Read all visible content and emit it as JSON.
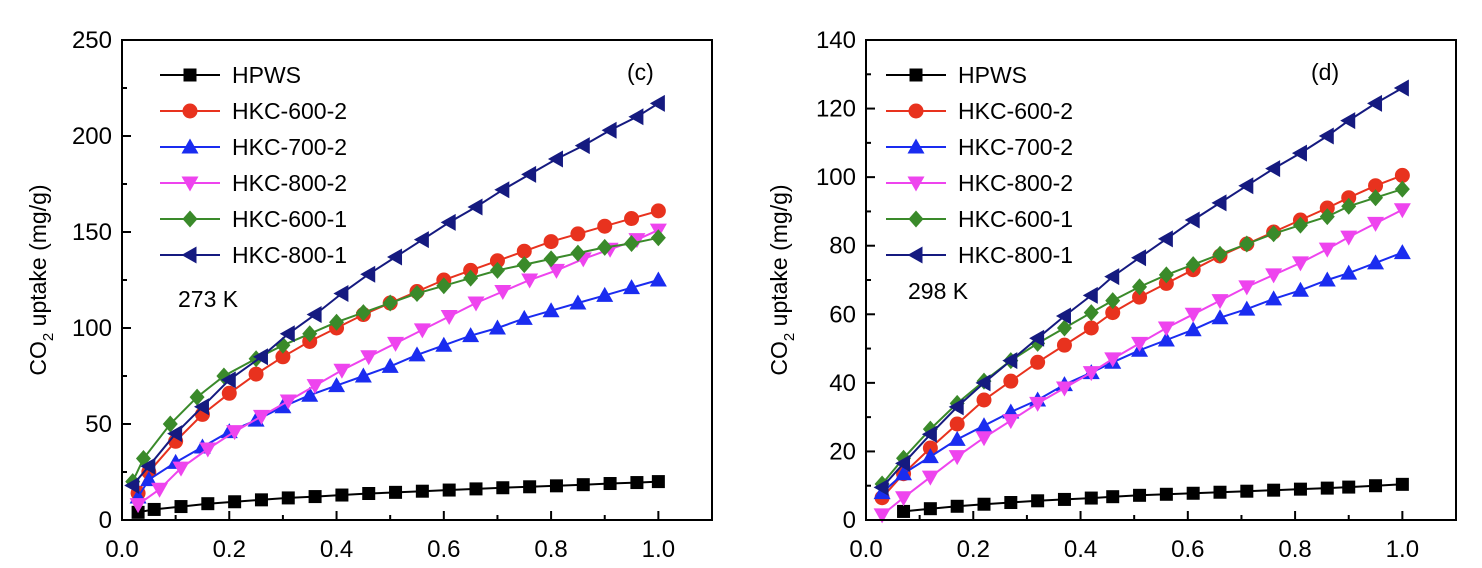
{
  "chart_data": [
    {
      "type": "line",
      "panel_label": "(c)",
      "annotation": "273 K",
      "ylabel": "CO2 uptake (mg/g)",
      "ylabel_main": "CO",
      "ylabel_sub": "2",
      "ylabel_rest": " uptake (mg/g)",
      "xlabel": "",
      "xlim": [
        0.0,
        1.1
      ],
      "ylim": [
        0,
        250
      ],
      "xticks": [
        "0.0",
        "0.2",
        "0.4",
        "0.6",
        "0.8",
        "1.0"
      ],
      "yticks": [
        "0",
        "50",
        "100",
        "150",
        "200",
        "250"
      ],
      "legend_position": "top-left",
      "series": [
        {
          "name": "HPWS",
          "color": "#000000",
          "marker": "square",
          "x": [
            0.03,
            0.06,
            0.11,
            0.16,
            0.21,
            0.26,
            0.31,
            0.36,
            0.41,
            0.46,
            0.51,
            0.56,
            0.61,
            0.66,
            0.71,
            0.76,
            0.81,
            0.86,
            0.91,
            0.96,
            1.0
          ],
          "y": [
            4,
            5.5,
            7,
            8.5,
            9.5,
            10.5,
            11.5,
            12.2,
            13,
            13.8,
            14.4,
            15,
            15.6,
            16.2,
            16.8,
            17.3,
            17.8,
            18.4,
            19,
            19.5,
            20
          ]
        },
        {
          "name": "HKC-600-2",
          "color": "#e8321e",
          "marker": "circle",
          "x": [
            0.03,
            0.05,
            0.1,
            0.15,
            0.2,
            0.25,
            0.3,
            0.35,
            0.4,
            0.45,
            0.5,
            0.55,
            0.6,
            0.65,
            0.7,
            0.75,
            0.8,
            0.85,
            0.9,
            0.95,
            1.0
          ],
          "y": [
            14,
            25,
            41,
            55,
            66,
            76,
            85,
            93,
            100,
            107,
            113,
            119,
            125,
            130,
            135,
            140,
            145,
            149,
            153,
            157,
            161
          ]
        },
        {
          "name": "HKC-700-2",
          "color": "#1a2cf0",
          "marker": "triangle-up",
          "x": [
            0.03,
            0.05,
            0.1,
            0.15,
            0.2,
            0.25,
            0.3,
            0.35,
            0.4,
            0.45,
            0.5,
            0.55,
            0.6,
            0.65,
            0.7,
            0.75,
            0.8,
            0.85,
            0.9,
            0.95,
            1.0
          ],
          "y": [
            12,
            21,
            30,
            38,
            46,
            52,
            59,
            65,
            70,
            75,
            80,
            86,
            91,
            96,
            100,
            105,
            109,
            113,
            117,
            121,
            125
          ]
        },
        {
          "name": "HKC-800-2",
          "color": "#ee44ee",
          "marker": "triangle-down",
          "x": [
            0.03,
            0.07,
            0.11,
            0.16,
            0.21,
            0.26,
            0.31,
            0.36,
            0.41,
            0.46,
            0.51,
            0.56,
            0.61,
            0.66,
            0.71,
            0.76,
            0.81,
            0.86,
            0.91,
            0.96,
            1.0
          ],
          "y": [
            8,
            16,
            27,
            37,
            46,
            54,
            62,
            70,
            78,
            85,
            92,
            99,
            106,
            113,
            119,
            125,
            130,
            136,
            141,
            146,
            151
          ]
        },
        {
          "name": "HKC-600-1",
          "color": "#3a8a2a",
          "marker": "diamond",
          "x": [
            0.02,
            0.04,
            0.09,
            0.14,
            0.19,
            0.25,
            0.3,
            0.35,
            0.4,
            0.45,
            0.5,
            0.55,
            0.6,
            0.65,
            0.7,
            0.75,
            0.8,
            0.85,
            0.9,
            0.95,
            1.0
          ],
          "y": [
            20,
            32,
            50,
            64,
            75,
            84,
            91,
            97,
            103,
            108,
            113,
            118,
            122,
            126,
            130,
            133,
            136,
            139,
            142,
            144,
            147
          ]
        },
        {
          "name": "HKC-800-1",
          "color": "#151a80",
          "marker": "triangle-left",
          "x": [
            0.02,
            0.05,
            0.1,
            0.15,
            0.2,
            0.26,
            0.31,
            0.36,
            0.41,
            0.46,
            0.51,
            0.56,
            0.61,
            0.66,
            0.71,
            0.76,
            0.81,
            0.86,
            0.91,
            0.96,
            1.0
          ],
          "y": [
            18,
            28,
            45,
            59,
            73,
            85,
            97,
            107,
            118,
            128,
            137,
            146,
            155,
            163,
            172,
            180,
            188,
            195,
            203,
            210,
            217
          ]
        }
      ]
    },
    {
      "type": "line",
      "panel_label": "(d)",
      "annotation": "298 K",
      "ylabel": "CO2 uptake (mg/g)",
      "ylabel_main": "CO",
      "ylabel_sub": "2",
      "ylabel_rest": " uptake (mg/g)",
      "xlabel": "",
      "xlim": [
        0.0,
        1.1
      ],
      "ylim": [
        0,
        140
      ],
      "xticks": [
        "0.0",
        "0.2",
        "0.4",
        "0.6",
        "0.8",
        "1.0"
      ],
      "yticks": [
        "0",
        "20",
        "40",
        "60",
        "80",
        "100",
        "120",
        "140"
      ],
      "legend_position": "top-left",
      "series": [
        {
          "name": "HPWS",
          "color": "#000000",
          "marker": "square",
          "x": [
            0.07,
            0.12,
            0.17,
            0.22,
            0.27,
            0.32,
            0.37,
            0.42,
            0.46,
            0.51,
            0.56,
            0.61,
            0.66,
            0.71,
            0.76,
            0.81,
            0.86,
            0.9,
            0.95,
            1.0
          ],
          "y": [
            2.5,
            3.3,
            4,
            4.6,
            5.1,
            5.6,
            6,
            6.4,
            6.8,
            7.2,
            7.5,
            7.8,
            8.1,
            8.4,
            8.7,
            9,
            9.3,
            9.6,
            10,
            10.4
          ]
        },
        {
          "name": "HKC-600-2",
          "color": "#e8321e",
          "marker": "circle",
          "x": [
            0.03,
            0.07,
            0.12,
            0.17,
            0.22,
            0.27,
            0.32,
            0.37,
            0.42,
            0.46,
            0.51,
            0.56,
            0.61,
            0.66,
            0.71,
            0.76,
            0.81,
            0.86,
            0.9,
            0.95,
            1.0
          ],
          "y": [
            6.5,
            13.5,
            21,
            28,
            35,
            40.5,
            46,
            51,
            56,
            60.5,
            65,
            69,
            73,
            77,
            80.5,
            84,
            87.5,
            91,
            94,
            97.5,
            100.5
          ]
        },
        {
          "name": "HKC-700-2",
          "color": "#1a2cf0",
          "marker": "triangle-up",
          "x": [
            0.03,
            0.07,
            0.12,
            0.17,
            0.22,
            0.27,
            0.32,
            0.37,
            0.42,
            0.46,
            0.51,
            0.56,
            0.61,
            0.66,
            0.71,
            0.76,
            0.81,
            0.86,
            0.9,
            0.95,
            1.0
          ],
          "y": [
            8,
            13.5,
            18.5,
            23.5,
            27.5,
            31.5,
            35,
            39.5,
            43,
            46,
            49.5,
            52.5,
            55.5,
            59,
            61.5,
            64.5,
            67,
            70,
            72,
            75,
            78
          ]
        },
        {
          "name": "HKC-800-2",
          "color": "#ee44ee",
          "marker": "triangle-down",
          "x": [
            0.03,
            0.07,
            0.12,
            0.17,
            0.22,
            0.27,
            0.32,
            0.37,
            0.42,
            0.46,
            0.51,
            0.56,
            0.61,
            0.66,
            0.71,
            0.76,
            0.81,
            0.86,
            0.9,
            0.95,
            1.0
          ],
          "y": [
            1.5,
            6.5,
            12.5,
            18.5,
            24,
            29,
            34,
            38.5,
            43,
            47,
            51.5,
            56,
            60,
            64,
            68,
            71.5,
            75,
            79,
            82.5,
            86.5,
            90.5
          ]
        },
        {
          "name": "HKC-600-1",
          "color": "#3a8a2a",
          "marker": "diamond",
          "x": [
            0.03,
            0.07,
            0.12,
            0.17,
            0.22,
            0.27,
            0.32,
            0.37,
            0.42,
            0.46,
            0.51,
            0.56,
            0.61,
            0.66,
            0.71,
            0.76,
            0.81,
            0.86,
            0.9,
            0.95,
            1.0
          ],
          "y": [
            10.5,
            18,
            26.5,
            34,
            40.5,
            46.5,
            51.5,
            56,
            60.5,
            64,
            68,
            71.5,
            74.5,
            77.5,
            80.5,
            83.5,
            86,
            88.5,
            91.5,
            94,
            96.5
          ]
        },
        {
          "name": "HKC-800-1",
          "color": "#151a80",
          "marker": "triangle-left",
          "x": [
            0.03,
            0.07,
            0.12,
            0.17,
            0.22,
            0.27,
            0.32,
            0.37,
            0.42,
            0.46,
            0.51,
            0.56,
            0.61,
            0.66,
            0.71,
            0.76,
            0.81,
            0.86,
            0.9,
            0.95,
            1.0
          ],
          "y": [
            9.5,
            16.5,
            25,
            33,
            40,
            46.5,
            53,
            59.5,
            65.5,
            71,
            76.5,
            82,
            87.5,
            92.5,
            97.5,
            102.5,
            107,
            112,
            116.5,
            121.5,
            126
          ]
        }
      ]
    }
  ]
}
